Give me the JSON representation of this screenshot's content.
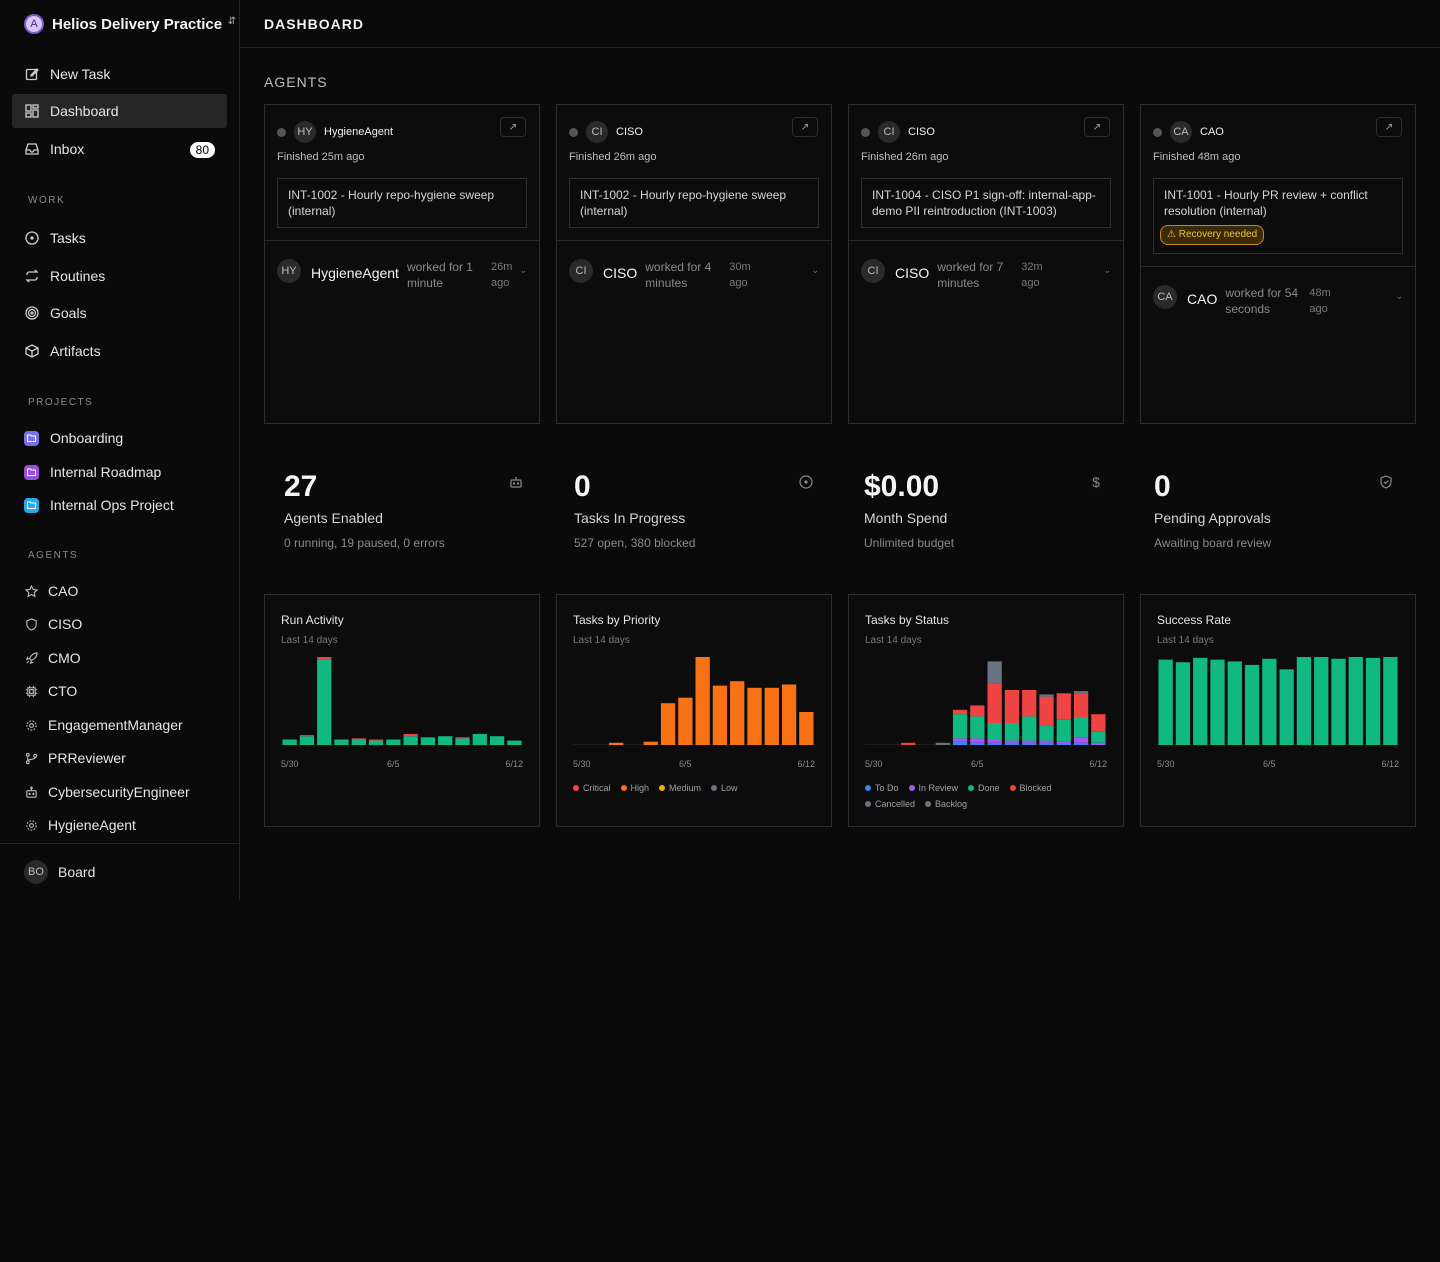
{
  "company": {
    "initial": "A",
    "name": "Helios Delivery Practice"
  },
  "nav": {
    "new_task": "New Task",
    "dashboard": "Dashboard",
    "inbox": "Inbox",
    "inbox_count": "80"
  },
  "sections": {
    "work": "WORK",
    "projects": "PROJECTS",
    "agents": "AGENTS"
  },
  "work_items": [
    "Tasks",
    "Routines",
    "Goals",
    "Artifacts"
  ],
  "projects": [
    {
      "name": "Onboarding",
      "color": "#7b6cf0"
    },
    {
      "name": "Internal Roadmap",
      "color": "#9b4fe0"
    },
    {
      "name": "Internal Ops Project",
      "color": "#2aa8e8"
    }
  ],
  "agents_nav": [
    {
      "name": "CAO",
      "icon": "star-icon"
    },
    {
      "name": "CISO",
      "icon": "shield-icon"
    },
    {
      "name": "CMO",
      "icon": "rocket-icon"
    },
    {
      "name": "CTO",
      "icon": "cpu-icon"
    },
    {
      "name": "EngagementManager",
      "icon": "cog-icon"
    },
    {
      "name": "PRReviewer",
      "icon": "git-branch-icon"
    },
    {
      "name": "CybersecurityEngineer",
      "icon": "robot-icon"
    },
    {
      "name": "HygieneAgent",
      "icon": "cog-icon"
    }
  ],
  "board": {
    "initials": "BO",
    "label": "Board"
  },
  "header": {
    "title": "DASHBOARD"
  },
  "agents_heading": "AGENTS",
  "agent_cards": [
    {
      "initials": "HY",
      "name": "HygieneAgent",
      "finished": "Finished 25m ago",
      "task": "INT-1002 - Hourly repo-hygiene sweep (internal)",
      "recovery": "",
      "run_name": "HygieneAgent",
      "worked": "worked for 1 minute",
      "ago": "26m ago"
    },
    {
      "initials": "CI",
      "name": "CISO",
      "finished": "Finished 26m ago",
      "task": "INT-1002 - Hourly repo-hygiene sweep (internal)",
      "recovery": "",
      "run_name": "CISO",
      "worked": "worked for 4 minutes",
      "ago": "30m ago"
    },
    {
      "initials": "CI",
      "name": "CISO",
      "finished": "Finished 26m ago",
      "task": "INT-1004 - CISO P1 sign-off: internal-app-demo PII reintroduction (INT-1003)",
      "recovery": "",
      "run_name": "CISO",
      "worked": "worked for 7 minutes",
      "ago": "32m ago"
    },
    {
      "initials": "CA",
      "name": "CAO",
      "finished": "Finished 48m ago",
      "task": "INT-1001 - Hourly PR review + conflict resolution (internal)",
      "recovery": "Recovery needed",
      "run_name": "CAO",
      "worked": "worked for 54 seconds",
      "ago": "48m ago"
    }
  ],
  "metrics": [
    {
      "value": "27",
      "label": "Agents Enabled",
      "sub": "0 running, 19 paused, 0 errors",
      "icon": "robot-icon"
    },
    {
      "value": "0",
      "label": "Tasks In Progress",
      "sub": "527 open, 380 blocked",
      "icon": "circle-dot-icon"
    },
    {
      "value": "$0.00",
      "label": "Month Spend",
      "sub": "Unlimited budget",
      "icon": "dollar-icon"
    },
    {
      "value": "0",
      "label": "Pending Approvals",
      "sub": "Awaiting board review",
      "icon": "shield-check-icon"
    }
  ],
  "colors": {
    "green": "#10b981",
    "orange": "#f97316",
    "red": "#ef4444",
    "yellow": "#eab308",
    "gray": "#6b7280",
    "blue": "#3b82f6",
    "purple": "#a855f7",
    "slate": "#64748b"
  },
  "chart_data": [
    {
      "type": "bar",
      "title": "Run Activity",
      "subtitle": "Last 14 days",
      "x_tick_labels": [
        "5/30",
        "6/5",
        "6/12"
      ],
      "categories": [
        "5/30",
        "5/31",
        "6/1",
        "6/2",
        "6/3",
        "6/4",
        "6/5",
        "6/6",
        "6/7",
        "6/8",
        "6/9",
        "6/10",
        "6/11",
        "6/12"
      ],
      "series": [
        {
          "color": "#10b981",
          "values": [
            5,
            8,
            78,
            5,
            5,
            4,
            5,
            8,
            7,
            8,
            6,
            10,
            8,
            4
          ]
        },
        {
          "color": "#ef4444",
          "values": [
            0,
            1,
            2,
            0,
            1,
            1,
            0,
            2,
            0,
            0,
            1,
            0,
            0,
            0
          ]
        }
      ]
    },
    {
      "type": "bar",
      "title": "Tasks by Priority",
      "subtitle": "Last 14 days",
      "x_tick_labels": [
        "5/30",
        "6/5",
        "6/12"
      ],
      "categories": [
        "5/30",
        "5/31",
        "6/1",
        "6/2",
        "6/3",
        "6/4",
        "6/5",
        "6/6",
        "6/7",
        "6/8",
        "6/9",
        "6/10",
        "6/11",
        "6/12"
      ],
      "legend": [
        "Critical",
        "High",
        "Medium",
        "Low"
      ],
      "legend_colors": [
        "#ef4444",
        "#f97316",
        "#eab308",
        "#6b7280"
      ],
      "series": [
        {
          "name": "High",
          "color": "#f97316",
          "values": [
            0,
            0,
            2,
            0,
            3,
            38,
            43,
            80,
            54,
            58,
            52,
            52,
            55,
            30
          ]
        }
      ]
    },
    {
      "type": "bar",
      "title": "Tasks by Status",
      "subtitle": "Last 14 days",
      "x_tick_labels": [
        "5/30",
        "6/5",
        "6/12"
      ],
      "categories": [
        "5/30",
        "5/31",
        "6/1",
        "6/2",
        "6/3",
        "6/4",
        "6/5",
        "6/6",
        "6/7",
        "6/8",
        "6/9",
        "6/10",
        "6/11",
        "6/12"
      ],
      "legend": [
        "To Do",
        "In Review",
        "Done",
        "Blocked",
        "Cancelled",
        "Backlog"
      ],
      "legend_colors": [
        "#3b82f6",
        "#a855f7",
        "#10b981",
        "#ef4444",
        "#6b7280",
        "#6b7280"
      ],
      "series": [
        {
          "name": "To Do",
          "color": "#3b82f6",
          "values": [
            0,
            0,
            0,
            0,
            0,
            3,
            2,
            2,
            2,
            2,
            2,
            1,
            2,
            0
          ]
        },
        {
          "name": "In Review",
          "color": "#a855f7",
          "values": [
            0,
            0,
            0,
            0,
            0,
            3,
            4,
            3,
            2,
            2,
            2,
            2,
            5,
            2
          ]
        },
        {
          "name": "Done",
          "color": "#10b981",
          "values": [
            0,
            0,
            0,
            0,
            0,
            22,
            20,
            15,
            16,
            22,
            14,
            20,
            18,
            10
          ]
        },
        {
          "name": "Blocked",
          "color": "#ef4444",
          "values": [
            0,
            0,
            2,
            0,
            0,
            4,
            10,
            36,
            30,
            24,
            26,
            24,
            22,
            16
          ]
        },
        {
          "name": "Backlog",
          "color": "#6b7280",
          "values": [
            0,
            0,
            0,
            0,
            2,
            0,
            0,
            20,
            0,
            0,
            2,
            0,
            2,
            0
          ]
        }
      ]
    },
    {
      "type": "bar",
      "title": "Success Rate",
      "subtitle": "Last 14 days",
      "x_tick_labels": [
        "5/30",
        "6/5",
        "6/12"
      ],
      "categories": [
        "5/30",
        "5/31",
        "6/1",
        "6/2",
        "6/3",
        "6/4",
        "6/5",
        "6/6",
        "6/7",
        "6/8",
        "6/9",
        "6/10",
        "6/11",
        "6/12"
      ],
      "series": [
        {
          "color": "#10b981",
          "values": [
            97,
            94,
            99,
            97,
            95,
            91,
            98,
            86,
            100,
            100,
            98,
            100,
            99,
            100
          ]
        }
      ]
    }
  ]
}
